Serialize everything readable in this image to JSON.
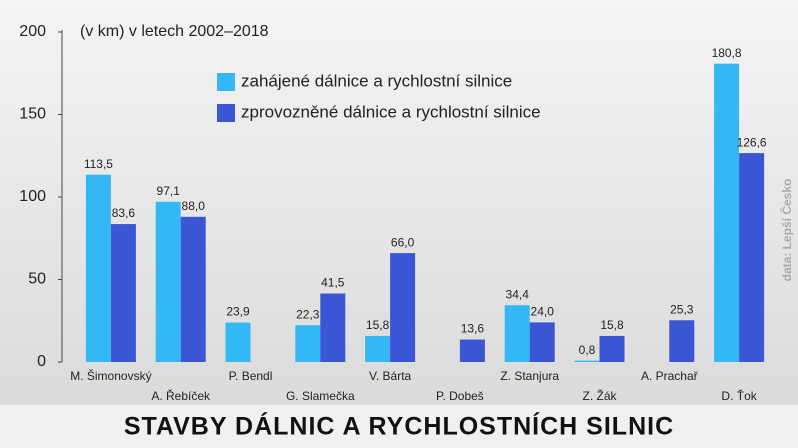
{
  "chart_data": {
    "type": "bar",
    "title": "STAVBY DÁLNIC A RYCHLOSTNÍCH SILNIC",
    "subtitle": "(v km) v letech 2002–2018",
    "source": "data: Lepší Česko",
    "categories": [
      "M. Šimonovský",
      "A. Řebíček",
      "P. Bendl",
      "G. Slamečka",
      "V. Bárta",
      "P. Dobeš",
      "Z. Stanjura",
      "Z. Žák",
      "A. Prachař",
      "D. Ťok"
    ],
    "series": [
      {
        "name": "zahájené dálnice a rychlostní silnice",
        "color": "#33b8f5",
        "values": [
          113.5,
          97.1,
          23.9,
          22.3,
          15.8,
          null,
          34.4,
          0.8,
          null,
          180.8
        ],
        "value_labels": [
          "113,5",
          "97,1",
          "23,9",
          "22,3",
          "15,8",
          null,
          "34,4",
          "0,8",
          null,
          "180,8"
        ]
      },
      {
        "name": "zprovozněné dálnice a rychlostní silnice",
        "color": "#3a56d4",
        "values": [
          83.6,
          88.0,
          null,
          41.5,
          66.0,
          13.6,
          24.0,
          15.8,
          25.3,
          126.6
        ],
        "value_labels": [
          "83,6",
          "88,0",
          null,
          "41,5",
          "66,0",
          "13,6",
          "24,0",
          "15,8",
          "25,3",
          "126,6"
        ]
      }
    ],
    "ylim": [
      0,
      200
    ],
    "yticks": [
      0,
      50,
      100,
      150,
      200
    ],
    "legend": "top"
  }
}
